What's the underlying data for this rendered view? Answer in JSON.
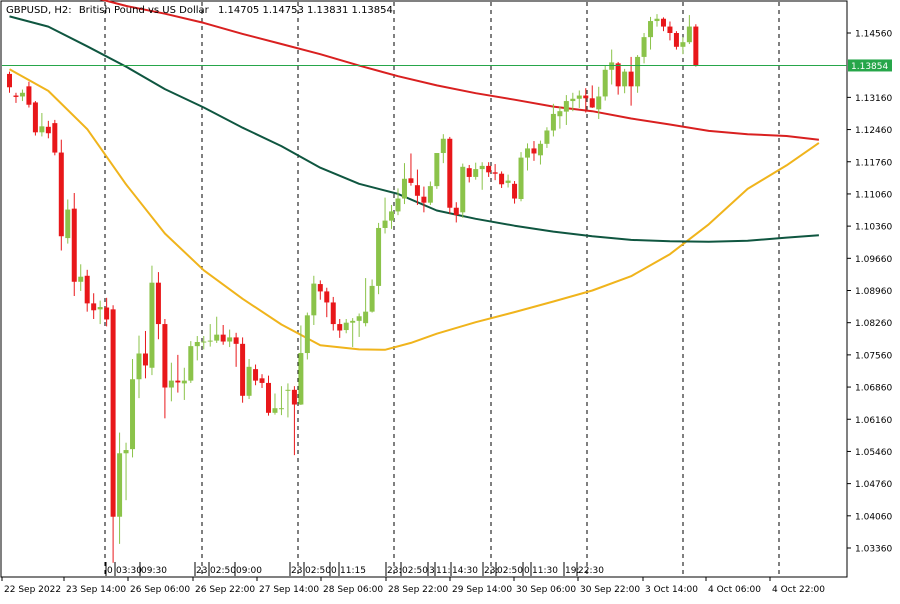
{
  "header": {
    "symbol": "GBPUSD, H2:",
    "description": "British Pound vs US Dollar",
    "ohlc": "1.14705 1.14753 1.13831 1.13854"
  },
  "price_line": {
    "label": "1.13854",
    "value": 1.13854,
    "color": "#26a64a"
  },
  "colors": {
    "bull": "#8bc34a",
    "bear": "#e8171a",
    "ma_fast": "#f0b41c",
    "ma_mid": "#0f5640",
    "ma_slow": "#d92020",
    "grid": "#000000",
    "axis": "#000000"
  },
  "time_labels": [
    "22 Sep 2022",
    "23 Sep 14:00",
    "26 Sep 06:00",
    "26 Sep 22:00",
    "27 Sep 14:00",
    "28 Sep 06:00",
    "28 Sep 22:00",
    "29 Sep 14:00",
    "30 Sep 06:00",
    "30 Sep 22:00",
    "3 Oct 14:00",
    "4 Oct 06:00",
    "4 Oct 22:00"
  ],
  "session_labels": [
    "0",
    "03:30",
    "09:30",
    "23:",
    "02:50",
    "09:00",
    "23:",
    "02:50",
    "0",
    "11:15",
    "23:",
    "02:50",
    "3",
    "11:",
    "14:30",
    "23:",
    "02:50",
    "0",
    "11:30",
    "19:",
    "22:30"
  ],
  "chart_data": {
    "type": "candlestick",
    "title": "GBPUSD, H2: British Pound vs US Dollar",
    "y_ticks": [
      "1.14560",
      "1.13160",
      "1.12460",
      "1.11760",
      "1.11060",
      "1.10360",
      "1.09660",
      "1.08960",
      "1.08260",
      "1.07560",
      "1.06860",
      "1.06160",
      "1.05460",
      "1.04760",
      "1.04060",
      "1.03360"
    ],
    "ylim": [
      1.0279,
      1.1512
    ],
    "last_price": 1.13854,
    "series": [
      {
        "name": "MA fast",
        "color": "#f0b41c",
        "x": [
          0,
          6,
          12,
          18,
          24,
          30,
          36,
          42,
          48,
          54,
          58,
          62,
          66,
          72,
          78,
          84,
          90,
          96,
          102,
          108,
          114,
          120,
          125
        ],
        "y": [
          1.1377,
          1.133,
          1.1247,
          1.1127,
          1.102,
          1.094,
          1.0878,
          1.0822,
          1.0777,
          1.0768,
          1.0767,
          1.0782,
          1.0802,
          1.0827,
          1.0849,
          1.0872,
          1.0896,
          1.0927,
          1.0975,
          1.104,
          1.1117,
          1.1168,
          1.1217
        ]
      },
      {
        "name": "MA mid",
        "color": "#0f5640",
        "x": [
          0,
          6,
          12,
          18,
          24,
          30,
          36,
          42,
          48,
          54,
          60,
          66,
          72,
          78,
          84,
          90,
          96,
          102,
          108,
          114,
          120,
          125
        ],
        "y": [
          1.1492,
          1.147,
          1.1427,
          1.1383,
          1.1334,
          1.1294,
          1.125,
          1.121,
          1.1163,
          1.1128,
          1.1106,
          1.107,
          1.1052,
          1.1037,
          1.1024,
          1.1014,
          1.1006,
          1.1003,
          1.1002,
          1.1004,
          1.1011,
          1.1016
        ]
      },
      {
        "name": "MA slow",
        "color": "#d92020",
        "x": [
          0,
          6,
          12,
          18,
          24,
          30,
          36,
          42,
          48,
          54,
          60,
          66,
          72,
          78,
          84,
          90,
          96,
          102,
          108,
          114,
          120,
          125
        ],
        "y": [
          1.1559,
          1.1552,
          1.1537,
          1.1515,
          1.1498,
          1.1478,
          1.1454,
          1.1432,
          1.141,
          1.1385,
          1.1362,
          1.1342,
          1.1325,
          1.1311,
          1.1296,
          1.1286,
          1.127,
          1.1257,
          1.1243,
          1.1236,
          1.1232,
          1.1224
        ]
      }
    ],
    "candles": [
      {
        "o": 1.1367,
        "h": 1.1372,
        "l": 1.1326,
        "c": 1.1338
      },
      {
        "o": 1.132,
        "h": 1.1326,
        "l": 1.1304,
        "c": 1.1317
      },
      {
        "o": 1.1318,
        "h": 1.1333,
        "l": 1.1308,
        "c": 1.1326
      },
      {
        "o": 1.134,
        "h": 1.135,
        "l": 1.1294,
        "c": 1.13
      },
      {
        "o": 1.1305,
        "h": 1.1308,
        "l": 1.1233,
        "c": 1.124
      },
      {
        "o": 1.124,
        "h": 1.1282,
        "l": 1.1231,
        "c": 1.1253
      },
      {
        "o": 1.1252,
        "h": 1.1265,
        "l": 1.1227,
        "c": 1.1238
      },
      {
        "o": 1.126,
        "h": 1.1267,
        "l": 1.119,
        "c": 1.1196
      },
      {
        "o": 1.1196,
        "h": 1.1224,
        "l": 1.0983,
        "c": 1.1014
      },
      {
        "o": 1.101,
        "h": 1.1094,
        "l": 1.0998,
        "c": 1.1072
      },
      {
        "o": 1.1074,
        "h": 1.1108,
        "l": 1.0884,
        "c": 1.0915
      },
      {
        "o": 1.0915,
        "h": 1.0953,
        "l": 1.0895,
        "c": 1.0926
      },
      {
        "o": 1.0928,
        "h": 1.0941,
        "l": 1.085,
        "c": 1.0868
      },
      {
        "o": 1.0868,
        "h": 1.089,
        "l": 1.0834,
        "c": 1.0853
      },
      {
        "o": 1.0855,
        "h": 1.0874,
        "l": 1.0823,
        "c": 1.086
      },
      {
        "o": 1.0859,
        "h": 1.088,
        "l": 1.0818,
        "c": 1.0833
      },
      {
        "o": 1.0855,
        "h": 1.0864,
        "l": 1.0304,
        "c": 1.0404
      },
      {
        "o": 1.0404,
        "h": 1.0587,
        "l": 1.0345,
        "c": 1.0542
      },
      {
        "o": 1.0542,
        "h": 1.0565,
        "l": 1.044,
        "c": 1.0549
      },
      {
        "o": 1.0551,
        "h": 1.0747,
        "l": 1.0533,
        "c": 1.0703
      },
      {
        "o": 1.0703,
        "h": 1.0798,
        "l": 1.0662,
        "c": 1.0759
      },
      {
        "o": 1.0759,
        "h": 1.0808,
        "l": 1.0705,
        "c": 1.0733
      },
      {
        "o": 1.0728,
        "h": 1.095,
        "l": 1.0712,
        "c": 1.0913
      },
      {
        "o": 1.0913,
        "h": 1.0936,
        "l": 1.079,
        "c": 1.0823
      },
      {
        "o": 1.0823,
        "h": 1.0834,
        "l": 1.0618,
        "c": 1.0685
      },
      {
        "o": 1.0685,
        "h": 1.0739,
        "l": 1.0655,
        "c": 1.07
      },
      {
        "o": 1.07,
        "h": 1.0756,
        "l": 1.0674,
        "c": 1.0696
      },
      {
        "o": 1.0694,
        "h": 1.0728,
        "l": 1.0658,
        "c": 1.07
      },
      {
        "o": 1.07,
        "h": 1.0786,
        "l": 1.0695,
        "c": 1.0775
      },
      {
        "o": 1.0775,
        "h": 1.0797,
        "l": 1.0744,
        "c": 1.0784
      },
      {
        "o": 1.0784,
        "h": 1.0797,
        "l": 1.0768,
        "c": 1.0785
      },
      {
        "o": 1.0785,
        "h": 1.0823,
        "l": 1.0774,
        "c": 1.0787
      },
      {
        "o": 1.0787,
        "h": 1.0839,
        "l": 1.0782,
        "c": 1.08
      },
      {
        "o": 1.08,
        "h": 1.0821,
        "l": 1.0778,
        "c": 1.0785
      },
      {
        "o": 1.0785,
        "h": 1.0811,
        "l": 1.0773,
        "c": 1.0794
      },
      {
        "o": 1.0794,
        "h": 1.0804,
        "l": 1.073,
        "c": 1.078
      },
      {
        "o": 1.078,
        "h": 1.0794,
        "l": 1.0652,
        "c": 1.0667
      },
      {
        "o": 1.0667,
        "h": 1.0747,
        "l": 1.066,
        "c": 1.073
      },
      {
        "o": 1.0725,
        "h": 1.0735,
        "l": 1.069,
        "c": 1.07
      },
      {
        "o": 1.0705,
        "h": 1.0714,
        "l": 1.0684,
        "c": 1.0695
      },
      {
        "o": 1.0695,
        "h": 1.0711,
        "l": 1.0624,
        "c": 1.063
      },
      {
        "o": 1.063,
        "h": 1.0672,
        "l": 1.0626,
        "c": 1.064
      },
      {
        "o": 1.064,
        "h": 1.0688,
        "l": 1.0625,
        "c": 1.064
      },
      {
        "o": 1.0678,
        "h": 1.0694,
        "l": 1.062,
        "c": 1.068
      },
      {
        "o": 1.068,
        "h": 1.0688,
        "l": 1.0538,
        "c": 1.0648
      },
      {
        "o": 1.0648,
        "h": 1.082,
        "l": 1.0647,
        "c": 1.076
      },
      {
        "o": 1.076,
        "h": 1.0848,
        "l": 1.0746,
        "c": 1.0842
      },
      {
        "o": 1.0842,
        "h": 1.0928,
        "l": 1.0821,
        "c": 1.0911
      },
      {
        "o": 1.091,
        "h": 1.0918,
        "l": 1.0876,
        "c": 1.0894
      },
      {
        "o": 1.0894,
        "h": 1.0902,
        "l": 1.0838,
        "c": 1.087
      },
      {
        "o": 1.087,
        "h": 1.0882,
        "l": 1.0809,
        "c": 1.0823
      },
      {
        "o": 1.0823,
        "h": 1.0834,
        "l": 1.0793,
        "c": 1.0809
      },
      {
        "o": 1.081,
        "h": 1.0834,
        "l": 1.0803,
        "c": 1.0826
      },
      {
        "o": 1.0826,
        "h": 1.0836,
        "l": 1.0773,
        "c": 1.083
      },
      {
        "o": 1.083,
        "h": 1.0846,
        "l": 1.0795,
        "c": 1.084
      },
      {
        "o": 1.0825,
        "h": 1.0923,
        "l": 1.0818,
        "c": 1.085
      },
      {
        "o": 1.085,
        "h": 1.092,
        "l": 1.0848,
        "c": 1.0906
      },
      {
        "o": 1.0906,
        "h": 1.1043,
        "l": 1.0888,
        "c": 1.1032
      },
      {
        "o": 1.1032,
        "h": 1.1098,
        "l": 1.102,
        "c": 1.1048
      },
      {
        "o": 1.1048,
        "h": 1.1082,
        "l": 1.103,
        "c": 1.1068
      },
      {
        "o": 1.1068,
        "h": 1.1118,
        "l": 1.106,
        "c": 1.1096
      },
      {
        "o": 1.1096,
        "h": 1.1173,
        "l": 1.1084,
        "c": 1.1139
      },
      {
        "o": 1.114,
        "h": 1.1194,
        "l": 1.1124,
        "c": 1.113
      },
      {
        "o": 1.1125,
        "h": 1.1159,
        "l": 1.1082,
        "c": 1.1102
      },
      {
        "o": 1.11,
        "h": 1.1122,
        "l": 1.1066,
        "c": 1.1087
      },
      {
        "o": 1.1087,
        "h": 1.1133,
        "l": 1.1082,
        "c": 1.1123
      },
      {
        "o": 1.1123,
        "h": 1.1193,
        "l": 1.1117,
        "c": 1.1195
      },
      {
        "o": 1.1195,
        "h": 1.1236,
        "l": 1.1173,
        "c": 1.1226
      },
      {
        "o": 1.1226,
        "h": 1.123,
        "l": 1.1063,
        "c": 1.1076
      },
      {
        "o": 1.1076,
        "h": 1.1088,
        "l": 1.1044,
        "c": 1.106
      },
      {
        "o": 1.1066,
        "h": 1.1172,
        "l": 1.1054,
        "c": 1.1165
      },
      {
        "o": 1.1162,
        "h": 1.1169,
        "l": 1.1131,
        "c": 1.1143
      },
      {
        "o": 1.1143,
        "h": 1.1174,
        "l": 1.1137,
        "c": 1.116
      },
      {
        "o": 1.116,
        "h": 1.1175,
        "l": 1.1115,
        "c": 1.1167
      },
      {
        "o": 1.1167,
        "h": 1.1175,
        "l": 1.1143,
        "c": 1.1153
      },
      {
        "o": 1.1153,
        "h": 1.1171,
        "l": 1.1136,
        "c": 1.115
      },
      {
        "o": 1.115,
        "h": 1.1155,
        "l": 1.1119,
        "c": 1.1127
      },
      {
        "o": 1.113,
        "h": 1.1148,
        "l": 1.112,
        "c": 1.1135
      },
      {
        "o": 1.1128,
        "h": 1.1134,
        "l": 1.1085,
        "c": 1.1096
      },
      {
        "o": 1.1095,
        "h": 1.1197,
        "l": 1.109,
        "c": 1.1185
      },
      {
        "o": 1.1185,
        "h": 1.1216,
        "l": 1.1157,
        "c": 1.1205
      },
      {
        "o": 1.1205,
        "h": 1.1221,
        "l": 1.1178,
        "c": 1.1194
      },
      {
        "o": 1.119,
        "h": 1.1222,
        "l": 1.117,
        "c": 1.1215
      },
      {
        "o": 1.1215,
        "h": 1.1251,
        "l": 1.1206,
        "c": 1.1244
      },
      {
        "o": 1.1244,
        "h": 1.1302,
        "l": 1.1231,
        "c": 1.128
      },
      {
        "o": 1.1275,
        "h": 1.1296,
        "l": 1.1248,
        "c": 1.1286
      },
      {
        "o": 1.1285,
        "h": 1.1321,
        "l": 1.1256,
        "c": 1.1308
      },
      {
        "o": 1.1308,
        "h": 1.1326,
        "l": 1.1286,
        "c": 1.1313
      },
      {
        "o": 1.1313,
        "h": 1.1331,
        "l": 1.1293,
        "c": 1.132
      },
      {
        "o": 1.132,
        "h": 1.1336,
        "l": 1.1283,
        "c": 1.1314
      },
      {
        "o": 1.1314,
        "h": 1.1342,
        "l": 1.1293,
        "c": 1.1294
      },
      {
        "o": 1.129,
        "h": 1.1339,
        "l": 1.1269,
        "c": 1.1318
      },
      {
        "o": 1.1318,
        "h": 1.1386,
        "l": 1.1309,
        "c": 1.1376
      },
      {
        "o": 1.1376,
        "h": 1.142,
        "l": 1.1344,
        "c": 1.1392
      },
      {
        "o": 1.139,
        "h": 1.1393,
        "l": 1.1322,
        "c": 1.134
      },
      {
        "o": 1.134,
        "h": 1.1378,
        "l": 1.1325,
        "c": 1.1372
      },
      {
        "o": 1.1372,
        "h": 1.1404,
        "l": 1.1298,
        "c": 1.134
      },
      {
        "o": 1.134,
        "h": 1.1408,
        "l": 1.1326,
        "c": 1.1404
      },
      {
        "o": 1.1404,
        "h": 1.1456,
        "l": 1.139,
        "c": 1.1447
      },
      {
        "o": 1.1447,
        "h": 1.1491,
        "l": 1.142,
        "c": 1.1482
      },
      {
        "o": 1.1482,
        "h": 1.1497,
        "l": 1.147,
        "c": 1.1487
      },
      {
        "o": 1.1487,
        "h": 1.149,
        "l": 1.146,
        "c": 1.147
      },
      {
        "o": 1.147,
        "h": 1.1481,
        "l": 1.144,
        "c": 1.1456
      },
      {
        "o": 1.1456,
        "h": 1.146,
        "l": 1.142,
        "c": 1.1426
      },
      {
        "o": 1.1426,
        "h": 1.1447,
        "l": 1.141,
        "c": 1.1436
      },
      {
        "o": 1.1436,
        "h": 1.1495,
        "l": 1.1432,
        "c": 1.147
      },
      {
        "o": 1.147,
        "h": 1.1475,
        "l": 1.1383,
        "c": 1.1385
      }
    ]
  }
}
